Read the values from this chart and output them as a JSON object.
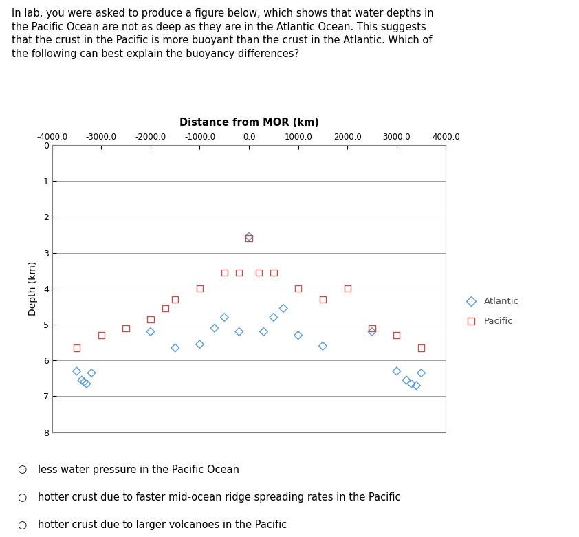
{
  "title_text": "In lab, you were asked to produce a figure below, which shows that water depths in\nthe Pacific Ocean are not as deep as they are in the Atlantic Ocean. This suggests\nthat the crust in the Pacific is more buoyant than the crust in the Atlantic. Which of\nthe following can best explain the buoyancy differences?",
  "xlabel": "Distance from MOR (km)",
  "ylabel": "Depth (km)",
  "xlim": [
    -4000,
    4000
  ],
  "ylim": [
    0,
    8
  ],
  "xticks": [
    -4000,
    -3000,
    -2000,
    -1000,
    0,
    1000,
    2000,
    3000,
    4000
  ],
  "yticks": [
    0,
    1,
    2,
    3,
    4,
    5,
    6,
    7,
    8
  ],
  "atlantic_color": "#5B9BD5",
  "pacific_color": "#C0504D",
  "atlantic_x": [
    -3500,
    -3400,
    -3350,
    -3300,
    -3200,
    -2000,
    -1500,
    -1000,
    -700,
    -500,
    -200,
    0,
    300,
    500,
    700,
    1000,
    1500,
    2500,
    3000,
    3200,
    3300,
    3400,
    3500
  ],
  "atlantic_y": [
    6.3,
    6.55,
    6.6,
    6.65,
    6.35,
    5.2,
    5.65,
    5.55,
    5.1,
    4.8,
    5.2,
    2.55,
    5.2,
    4.8,
    4.55,
    5.3,
    5.6,
    5.2,
    6.3,
    6.55,
    6.65,
    6.7,
    6.35
  ],
  "pacific_x": [
    -3500,
    -3000,
    -2500,
    -2000,
    -1700,
    -1500,
    -1000,
    -500,
    -200,
    0,
    200,
    500,
    1000,
    1500,
    2000,
    2500,
    3000,
    3500
  ],
  "pacific_y": [
    5.65,
    5.3,
    5.1,
    4.85,
    4.55,
    4.3,
    4.0,
    3.55,
    3.55,
    2.6,
    3.55,
    3.55,
    4.0,
    4.3,
    4.0,
    5.1,
    5.3,
    5.65
  ],
  "answers": [
    "less water pressure in the Pacific Ocean",
    "hotter crust due to faster mid-ocean ridge spreading rates in the Pacific",
    "hotter crust due to larger volcanoes in the Pacific"
  ],
  "bg_color": "#FFFFFF",
  "plot_bg_color": "#FFFFFF",
  "grid_color": "#A0A0A0",
  "border_color": "#808080"
}
